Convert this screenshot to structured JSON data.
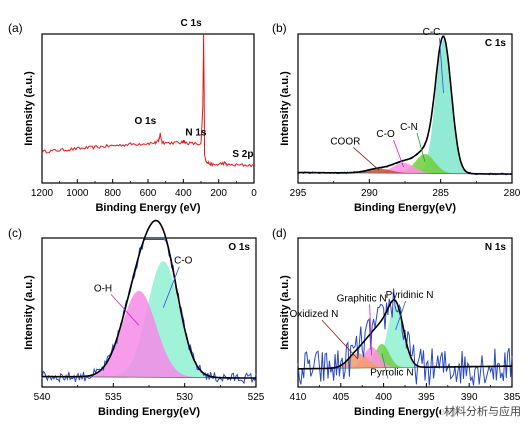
{
  "watermark": "材料分析与应用",
  "chart_data": [
    {
      "type": "line",
      "panel": "(a)",
      "title": "",
      "xlabel": "Binding Energy (eV)",
      "ylabel": "Intensity (a.u.)",
      "x_ticks": [
        1200,
        1000,
        800,
        600,
        400,
        200,
        0
      ],
      "xlim": [
        1200,
        0
      ],
      "ylim": [
        0,
        100
      ],
      "series": [
        {
          "color": "#e8191c",
          "x": [
            1200,
            1150,
            1100,
            1050,
            1000,
            950,
            900,
            850,
            800,
            750,
            700,
            650,
            600,
            560,
            540,
            531,
            520,
            500,
            450,
            410,
            400,
            390,
            350,
            300,
            290,
            285,
            282,
            280,
            270,
            250,
            230,
            200,
            168,
            150,
            100,
            50,
            0
          ],
          "y": [
            21,
            21.5,
            22,
            22.5,
            23,
            23.5,
            24,
            24.5,
            25,
            25.5,
            26,
            26.3,
            26.6,
            27,
            28,
            33,
            27.5,
            27,
            27,
            27,
            28.5,
            27,
            26.5,
            26,
            50,
            100,
            60,
            20,
            14,
            13,
            12,
            12.5,
            13.5,
            12,
            12,
            12,
            12
          ]
        }
      ],
      "annotations": [
        {
          "text": "C 1s",
          "x": 285
        },
        {
          "text": "O 1s",
          "x": 531
        },
        {
          "text": "N 1s",
          "x": 400
        },
        {
          "text": "S 2p",
          "x": 168
        }
      ]
    },
    {
      "type": "area",
      "panel": "(b)",
      "title": "C 1s",
      "xlabel": "Binding Energy(eV)",
      "ylabel": "Intensity (a.u.)",
      "x_ticks": [
        295,
        290,
        285,
        280
      ],
      "xlim": [
        295,
        280
      ],
      "ylim": [
        0,
        100
      ],
      "peaks": [
        {
          "name": "C-C",
          "center": 284.8,
          "fwhm": 1.3,
          "height": 90,
          "color": "#7fe6cc"
        },
        {
          "name": "C-N",
          "center": 286.1,
          "fwhm": 1.6,
          "height": 13,
          "color": "#6fcf3c"
        },
        {
          "name": "C-O",
          "center": 287.6,
          "fwhm": 1.8,
          "height": 7,
          "color": "#ff8ee0"
        },
        {
          "name": "COOR",
          "center": 289.3,
          "fwhm": 2.0,
          "height": 3,
          "color": "#c8502d"
        }
      ],
      "label_colors": {
        "C-C": "#2a57d6",
        "C-N": "#1f9e2b",
        "C-O": "#d61ecb",
        "COOR": "#8b1a1a"
      }
    },
    {
      "type": "area",
      "panel": "(c)",
      "title": "O 1s",
      "xlabel": "Binding Energy(eV)",
      "ylabel": "Intensity (a.u.)",
      "x_ticks": [
        540,
        535,
        530,
        525
      ],
      "xlim": [
        540,
        525
      ],
      "ylim": [
        0,
        100
      ],
      "peaks": [
        {
          "name": "C-O",
          "center": 531.5,
          "fwhm": 2.6,
          "height": 78,
          "color": "#8ff0d2"
        },
        {
          "name": "O-H",
          "center": 533.2,
          "fwhm": 2.8,
          "height": 58,
          "color": "#f58be8"
        }
      ],
      "label_colors": {
        "C-O": "#2a57d6",
        "O-H": "#d61ecb"
      }
    },
    {
      "type": "area",
      "panel": "(d)",
      "title": "N 1s",
      "xlabel": "Binding Energy(eV)",
      "ylabel": "Intensity (a.u.)",
      "x_ticks": [
        410,
        405,
        400,
        395,
        390,
        385
      ],
      "xlim": [
        410,
        385
      ],
      "ylim": [
        0,
        100
      ],
      "peaks": [
        {
          "name": "Pyridinic N",
          "center": 398.6,
          "fwhm": 2.2,
          "height": 42,
          "color": "#8ff0d2"
        },
        {
          "name": "Pyrrolic N",
          "center": 400.2,
          "fwhm": 2.0,
          "height": 16,
          "color": "#70d048"
        },
        {
          "name": "Graphitic N",
          "center": 401.4,
          "fwhm": 2.2,
          "height": 14,
          "color": "#ff8fd8"
        },
        {
          "name": "Oxidized N",
          "center": 403.0,
          "fwhm": 2.6,
          "height": 10,
          "color": "#f59a6a"
        }
      ],
      "label_colors": {
        "Pyridinic N": "#2a57d6",
        "Pyrrolic N": "#1f9e2b",
        "Graphitic N": "#d61ecb",
        "Oxidized N": "#8b1a1a"
      }
    }
  ]
}
